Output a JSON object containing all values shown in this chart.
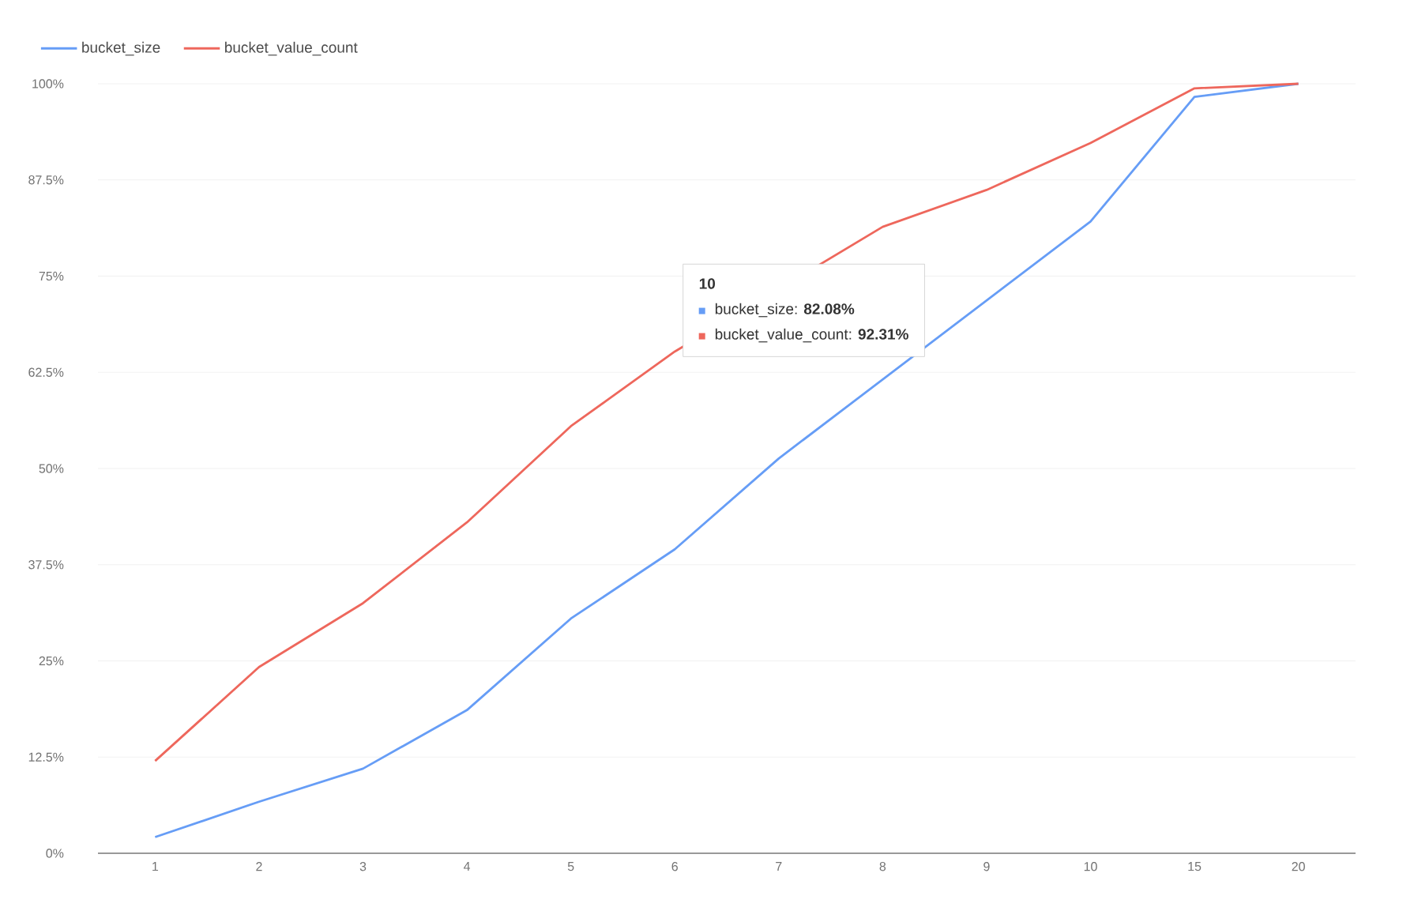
{
  "chart_data": {
    "type": "line",
    "categories": [
      "1",
      "2",
      "3",
      "4",
      "5",
      "6",
      "7",
      "8",
      "9",
      "10",
      "15",
      "20"
    ],
    "series": [
      {
        "name": "bucket_size",
        "color": "#669df6",
        "values": [
          2.1,
          6.7,
          11.0,
          18.6,
          30.5,
          39.5,
          51.3,
          null,
          null,
          82.1,
          98.3,
          100
        ]
      },
      {
        "name": "bucket_value_count",
        "color": "#ee675c",
        "values": [
          12.0,
          24.2,
          32.5,
          43.0,
          55.5,
          65.2,
          null,
          81.4,
          86.2,
          92.3,
          99.4,
          100
        ]
      }
    ],
    "ylim": [
      0,
      100
    ],
    "yticks": [
      {
        "value": 0,
        "label": "0%"
      },
      {
        "value": 12.5,
        "label": "12.5%"
      },
      {
        "value": 25,
        "label": "25%"
      },
      {
        "value": 37.5,
        "label": "37.5%"
      },
      {
        "value": 50,
        "label": "50%"
      },
      {
        "value": 62.5,
        "label": "62.5%"
      },
      {
        "value": 75,
        "label": "75%"
      },
      {
        "value": 87.5,
        "label": "87.5%"
      },
      {
        "value": 100,
        "label": "100%"
      }
    ],
    "grid": "y",
    "legend": "top left",
    "marker": "none",
    "line_style": "solid",
    "annotations": [
      "10",
      "bucket_size: **82.08%**",
      "bucket_value_count: **92.31%**"
    ]
  }
}
